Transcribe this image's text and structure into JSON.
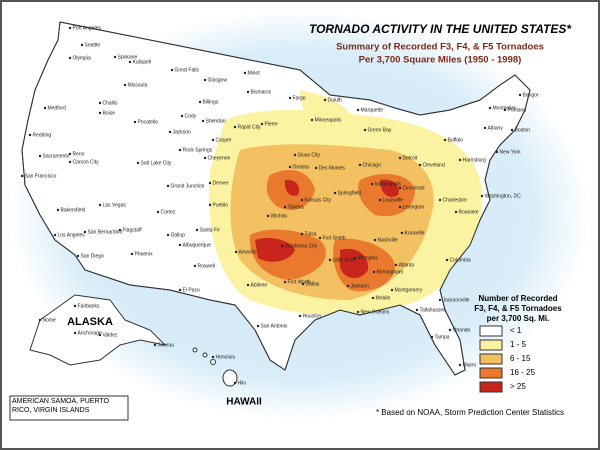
{
  "header": {
    "title": "TORNADO ACTIVITY IN THE UNITED STATES*",
    "subtitle_lines": [
      "Summary of Recorded F3, F4, & F5 Tornadoes",
      "Per 3,700 Square Miles (1950 - 1998)"
    ]
  },
  "legend": {
    "title_lines": [
      "Number of Recorded",
      "F3, F4, & F5 Tornadoes",
      "per 3,700 Sq. Mi."
    ],
    "items": [
      {
        "label": "< 1",
        "color": "#ffffff"
      },
      {
        "label": "1 - 5",
        "color": "#fbf3a2"
      },
      {
        "label": "6 - 15",
        "color": "#f3c062"
      },
      {
        "label": "16 - 25",
        "color": "#e9792c"
      },
      {
        "label": "> 25",
        "color": "#c8261c"
      }
    ]
  },
  "regions": {
    "alaska": "ALASKA",
    "hawaii": "HAWAII",
    "territories": "AMERICAN SAMOA, PUERTO RICO, VIRGIN ISLANDS"
  },
  "footnote": "* Based on NOAA, Storm Prediction Center Statistics",
  "cities": [
    "Port Angeles",
    "Seattle",
    "Olympia",
    "Spokane",
    "Kalispell",
    "Great Falls",
    "Missoula",
    "Glasgow",
    "Minot",
    "Bismarck",
    "Fargo",
    "Duluth",
    "Billings",
    "Challis",
    "Boise",
    "Pocatello",
    "Cody",
    "Sheridan",
    "Medford",
    "Redding",
    "Reno",
    "Carson City",
    "Sacramento",
    "San Francisco",
    "Salt Lake City",
    "Casper",
    "Jackson",
    "Rapid City",
    "Pierre",
    "Rock Springs",
    "Cheyenne",
    "Minneapolis",
    "Green Bay",
    "Marquette",
    "Sioux City",
    "Omaha",
    "Des Moines",
    "Chicago",
    "Detroit",
    "Cleveland",
    "Buffalo",
    "Albany",
    "Boston",
    "Portland",
    "Bangor",
    "Montpelier",
    "New York",
    "Harrisburg",
    "Washington, DC",
    "Charleston",
    "Lexington",
    "Louisville",
    "Cincinnati",
    "Indianapolis",
    "Springfield",
    "Kansas City",
    "Topeka",
    "Wichita",
    "Denver",
    "Grand Junction",
    "Pueblo",
    "Cortez",
    "Las Vegas",
    "Bakersfield",
    "Los Angeles",
    "San Bernardino",
    "San Diego",
    "Flagstaff",
    "Phoenix",
    "Gallup",
    "Albuquerque",
    "Santa Fe",
    "Roswell",
    "El Paso",
    "Amarillo",
    "Oklahoma City",
    "Tulsa",
    "Fort Smith",
    "Little Rock",
    "Memphis",
    "Nashville",
    "Knoxville",
    "Roanoke",
    "Columbia",
    "Atlanta",
    "Birmingham",
    "Jackson",
    "Dallas",
    "Fort Worth",
    "Abilene",
    "San Antonio",
    "Houston",
    "New Orleans",
    "Mobile",
    "Montgomery",
    "Tallahassee",
    "Jacksonville",
    "Orlando",
    "Tampa",
    "Miami",
    "Fairbanks",
    "Nome",
    "Anchorage",
    "Valdez",
    "Juneau",
    "Honolulu",
    "Hilo"
  ]
}
